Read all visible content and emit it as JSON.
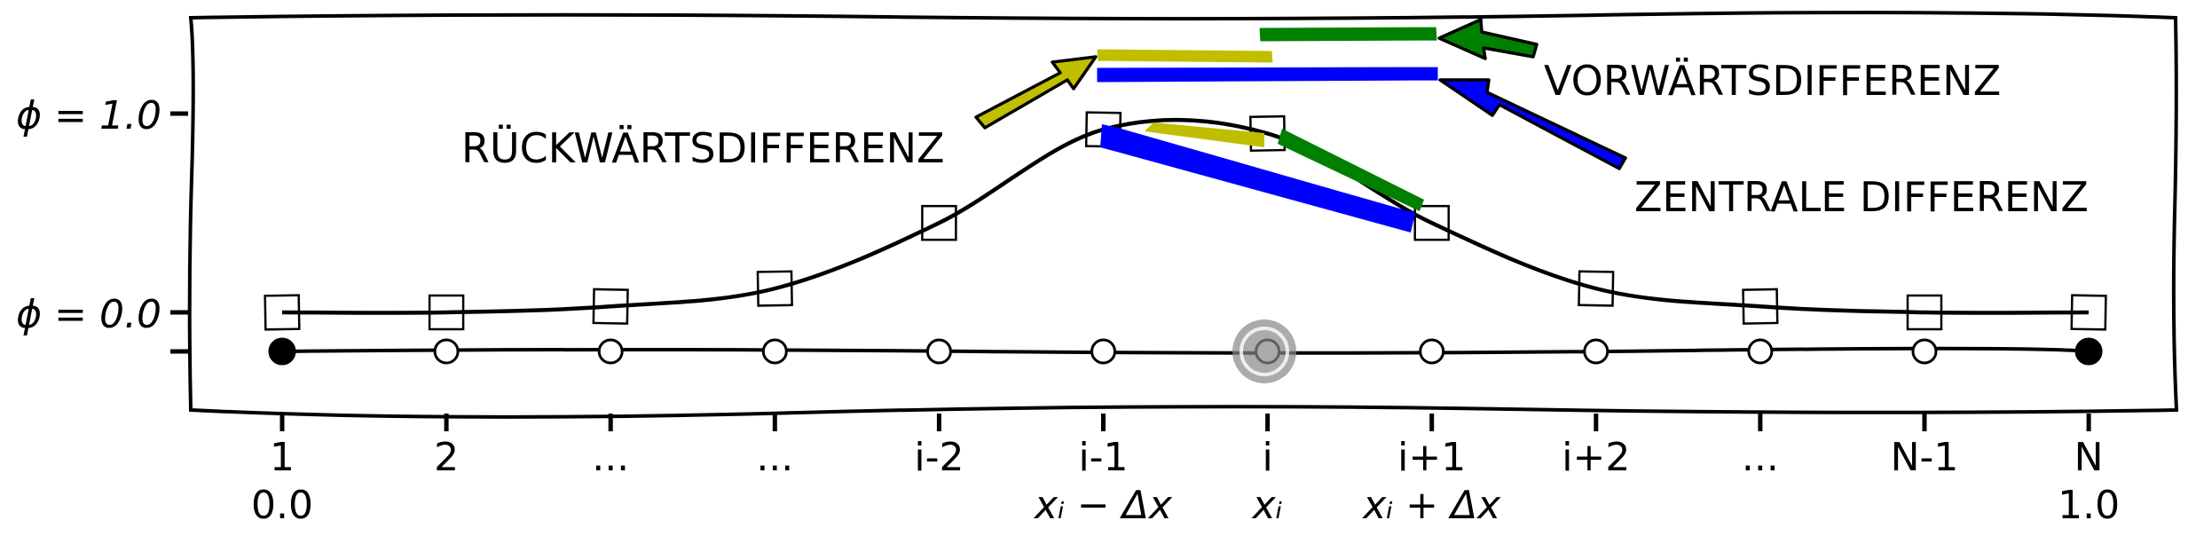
{
  "y_ticks": [
    {
      "label": "ϕ = 1.0"
    },
    {
      "label": "ϕ = 0.0"
    },
    {
      "label": ""
    }
  ],
  "x_ticks": [
    {
      "index": "1",
      "coord": "0.0"
    },
    {
      "index": "2",
      "coord": ""
    },
    {
      "index": "...",
      "coord": ""
    },
    {
      "index": "...",
      "coord": ""
    },
    {
      "index": "i-2",
      "coord": ""
    },
    {
      "index": "i-1",
      "coord": "xᵢ − Δx"
    },
    {
      "index": "i",
      "coord": "xᵢ"
    },
    {
      "index": "i+1",
      "coord": "xᵢ + Δx"
    },
    {
      "index": "i+2",
      "coord": ""
    },
    {
      "index": "...",
      "coord": ""
    },
    {
      "index": "N-1",
      "coord": ""
    },
    {
      "index": "N",
      "coord": "1.0"
    }
  ],
  "annotations": {
    "backward": "RÜCKWÄRTSDIFFERENZ",
    "forward": "VORWÄRTSDIFFERENZ",
    "central": "ZENTRALE DIFFERENZ"
  },
  "phi_values": [
    0.0,
    0.0,
    0.03,
    0.12,
    0.45,
    0.92,
    0.9,
    0.45,
    0.12,
    0.03,
    0.0,
    0.0
  ],
  "colors": {
    "backward": "#bfbf00",
    "forward": "#008000",
    "central": "#0000ff",
    "highlight": "#888888",
    "line": "#000000"
  }
}
